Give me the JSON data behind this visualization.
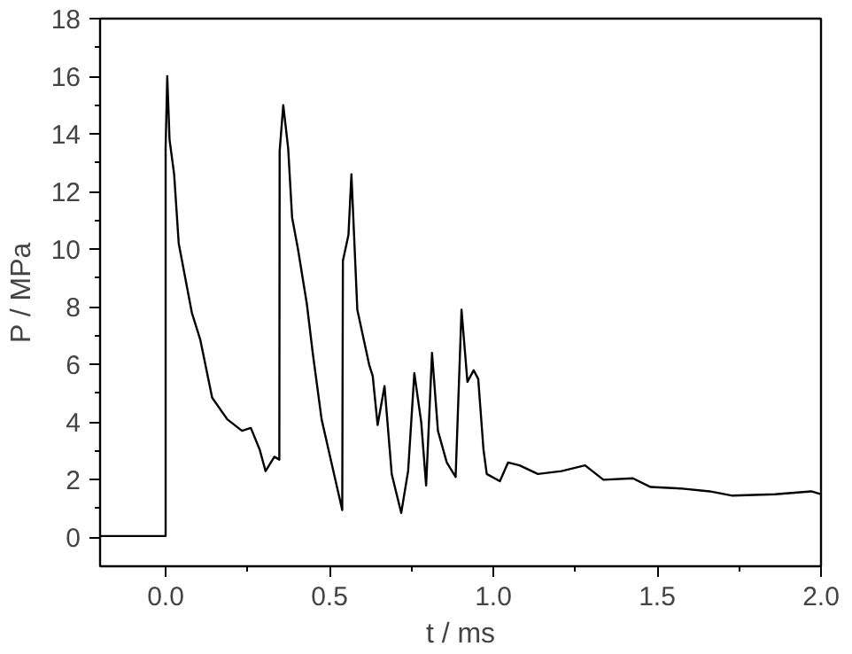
{
  "chart_data": {
    "type": "line",
    "xlabel": "t / ms",
    "ylabel": "P / MPa",
    "xlim": [
      -0.2,
      2.0
    ],
    "ylim": [
      -1,
      18
    ],
    "xticks": [
      {
        "value": 0,
        "label": "0.0"
      },
      {
        "value": 0.5,
        "label": "0.5"
      },
      {
        "value": 1.0,
        "label": "1.0"
      },
      {
        "value": 1.5,
        "label": "1.5"
      },
      {
        "value": 2.0,
        "label": "2.0"
      }
    ],
    "yticks": [
      0,
      2,
      4,
      6,
      8,
      10,
      12,
      14,
      16,
      18
    ],
    "grid": false,
    "marker": "none",
    "line_style": "solid",
    "series": [
      {
        "color": "#000000",
        "x": [
          -0.2,
          -0.1,
          0.0,
          0.0,
          0.005,
          0.012,
          0.026,
          0.04,
          0.08,
          0.106,
          0.142,
          0.188,
          0.233,
          0.26,
          0.287,
          0.305,
          0.332,
          0.347,
          0.348,
          0.359,
          0.374,
          0.386,
          0.404,
          0.431,
          0.449,
          0.476,
          0.512,
          0.539,
          0.541,
          0.558,
          0.567,
          0.585,
          0.621,
          0.632,
          0.647,
          0.668,
          0.69,
          0.719,
          0.74,
          0.759,
          0.78,
          0.795,
          0.813,
          0.831,
          0.858,
          0.885,
          0.903,
          0.921,
          0.94,
          0.954,
          0.97,
          0.98,
          1.02,
          1.045,
          1.08,
          1.136,
          1.208,
          1.28,
          1.336,
          1.426,
          1.48,
          1.57,
          1.66,
          1.73,
          1.86,
          1.97,
          2.0
        ],
        "values": [
          0.05,
          0.05,
          0.05,
          13.5,
          16.0,
          13.8,
          12.6,
          10.2,
          7.8,
          6.85,
          4.85,
          4.1,
          3.7,
          3.8,
          3.05,
          2.3,
          2.8,
          2.7,
          13.4,
          15.0,
          13.5,
          11.1,
          10.0,
          8.1,
          6.4,
          4.1,
          2.3,
          0.95,
          9.6,
          10.5,
          12.6,
          7.9,
          6.0,
          5.6,
          3.9,
          5.25,
          2.2,
          0.85,
          2.3,
          5.7,
          4.0,
          1.8,
          6.4,
          3.7,
          2.6,
          2.1,
          7.9,
          5.4,
          5.8,
          5.5,
          3.05,
          2.2,
          1.95,
          2.6,
          2.5,
          2.2,
          2.3,
          2.5,
          2.0,
          2.05,
          1.75,
          1.7,
          1.6,
          1.45,
          1.5,
          1.6,
          1.5
        ]
      }
    ]
  }
}
